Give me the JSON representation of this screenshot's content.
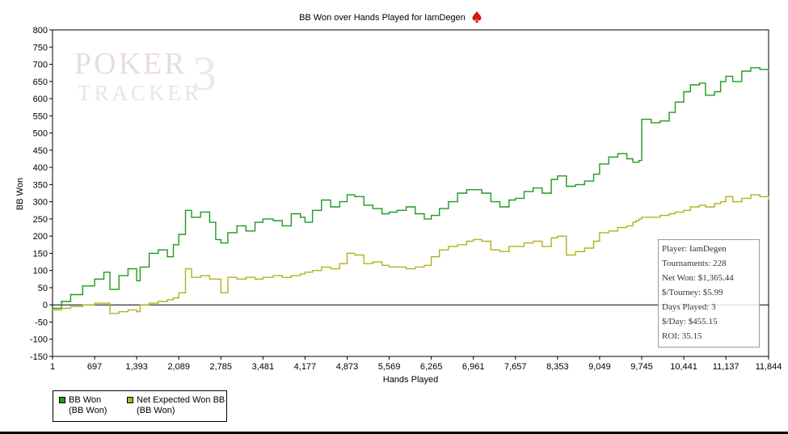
{
  "chart_data": {
    "type": "line",
    "title": "BB Won over Hands Played for IamDegen",
    "xlabel": "Hands Played",
    "ylabel": "BB Won",
    "xlim": [
      1,
      11844
    ],
    "ylim": [
      -150,
      800
    ],
    "x_ticks": [
      1,
      697,
      1393,
      2089,
      2785,
      3481,
      4177,
      4873,
      5569,
      6265,
      6961,
      7657,
      8353,
      9049,
      9745,
      10441,
      11137,
      11844
    ],
    "x_tick_labels": [
      "1",
      "697",
      "1,393",
      "2,089",
      "2,785",
      "3,481",
      "4,177",
      "4,873",
      "5,569",
      "6,265",
      "6,961",
      "7,657",
      "8,353",
      "9,049",
      "9,745",
      "10,441",
      "11,137",
      "11,844"
    ],
    "y_ticks": [
      -150,
      -100,
      -50,
      0,
      50,
      100,
      150,
      200,
      250,
      300,
      350,
      400,
      450,
      500,
      550,
      600,
      650,
      700,
      750,
      800
    ],
    "grid": false,
    "legend_position": "bottom-left",
    "series": [
      {
        "name": "BB Won",
        "sub": "(BB Won)",
        "color": "#1e9a1e",
        "x": [
          1,
          150,
          300,
          500,
          697,
          850,
          950,
          1100,
          1250,
          1393,
          1450,
          1600,
          1750,
          1900,
          2000,
          2089,
          2200,
          2300,
          2450,
          2600,
          2700,
          2785,
          2900,
          3050,
          3200,
          3350,
          3481,
          3650,
          3800,
          3950,
          4100,
          4177,
          4300,
          4450,
          4600,
          4750,
          4873,
          5000,
          5150,
          5300,
          5450,
          5569,
          5700,
          5850,
          6000,
          6150,
          6265,
          6400,
          6550,
          6700,
          6850,
          6961,
          7100,
          7250,
          7400,
          7550,
          7657,
          7800,
          7950,
          8100,
          8250,
          8353,
          8500,
          8650,
          8800,
          8950,
          9049,
          9200,
          9350,
          9500,
          9600,
          9650,
          9700,
          9745,
          9900,
          10050,
          10200,
          10300,
          10441,
          10550,
          10700,
          10800,
          10950,
          11050,
          11137,
          11250,
          11400,
          11550,
          11700,
          11844
        ],
        "y": [
          -10,
          10,
          30,
          55,
          75,
          95,
          45,
          85,
          105,
          70,
          110,
          150,
          160,
          140,
          175,
          205,
          275,
          255,
          270,
          240,
          190,
          180,
          210,
          230,
          215,
          240,
          250,
          245,
          230,
          265,
          255,
          240,
          275,
          305,
          285,
          300,
          320,
          315,
          290,
          280,
          265,
          270,
          275,
          285,
          265,
          250,
          260,
          280,
          300,
          325,
          335,
          335,
          325,
          300,
          285,
          305,
          310,
          330,
          340,
          325,
          365,
          375,
          345,
          350,
          360,
          380,
          410,
          430,
          440,
          425,
          415,
          415,
          420,
          540,
          530,
          535,
          560,
          590,
          620,
          640,
          645,
          610,
          620,
          650,
          665,
          650,
          680,
          690,
          685,
          675
        ]
      },
      {
        "name": "Net Expected Won BB",
        "sub": "(BB Won)",
        "color": "#b2b21c",
        "x": [
          1,
          150,
          300,
          500,
          697,
          850,
          950,
          1100,
          1250,
          1393,
          1450,
          1600,
          1750,
          1900,
          2000,
          2089,
          2200,
          2300,
          2450,
          2600,
          2700,
          2785,
          2900,
          3050,
          3200,
          3350,
          3481,
          3650,
          3800,
          3950,
          4100,
          4177,
          4300,
          4450,
          4600,
          4750,
          4873,
          5000,
          5150,
          5300,
          5450,
          5569,
          5700,
          5850,
          6000,
          6150,
          6265,
          6400,
          6550,
          6700,
          6850,
          6961,
          7100,
          7250,
          7400,
          7550,
          7657,
          7800,
          7950,
          8100,
          8250,
          8353,
          8500,
          8650,
          8800,
          8950,
          9049,
          9200,
          9350,
          9500,
          9600,
          9650,
          9700,
          9745,
          9900,
          10050,
          10200,
          10300,
          10441,
          10550,
          10700,
          10800,
          10950,
          11050,
          11137,
          11250,
          11400,
          11550,
          11700,
          11844
        ],
        "y": [
          -15,
          -10,
          -5,
          0,
          5,
          5,
          -25,
          -20,
          -15,
          -20,
          0,
          5,
          10,
          15,
          20,
          35,
          105,
          80,
          85,
          75,
          75,
          35,
          80,
          75,
          80,
          75,
          80,
          85,
          80,
          85,
          90,
          95,
          100,
          110,
          105,
          120,
          150,
          145,
          120,
          125,
          115,
          110,
          110,
          105,
          110,
          115,
          140,
          160,
          170,
          175,
          185,
          190,
          185,
          160,
          155,
          170,
          170,
          180,
          185,
          170,
          195,
          200,
          145,
          155,
          165,
          185,
          210,
          215,
          225,
          230,
          240,
          245,
          250,
          255,
          255,
          260,
          265,
          270,
          275,
          285,
          290,
          285,
          295,
          300,
          315,
          300,
          310,
          320,
          315,
          305
        ]
      }
    ]
  },
  "stats": {
    "player": "Player: IamDegen",
    "tournaments": "Tournaments: 228",
    "net_won": "Net Won: $1,365.44",
    "per_tourney": "$/Tourney: $5.99",
    "days_played": "Days Played: 3",
    "per_day": "$/Day: $455.15",
    "roi": "ROI: 35.15"
  },
  "watermark": {
    "line1": "POKER",
    "line2": "TRACKER",
    "number": "3"
  }
}
